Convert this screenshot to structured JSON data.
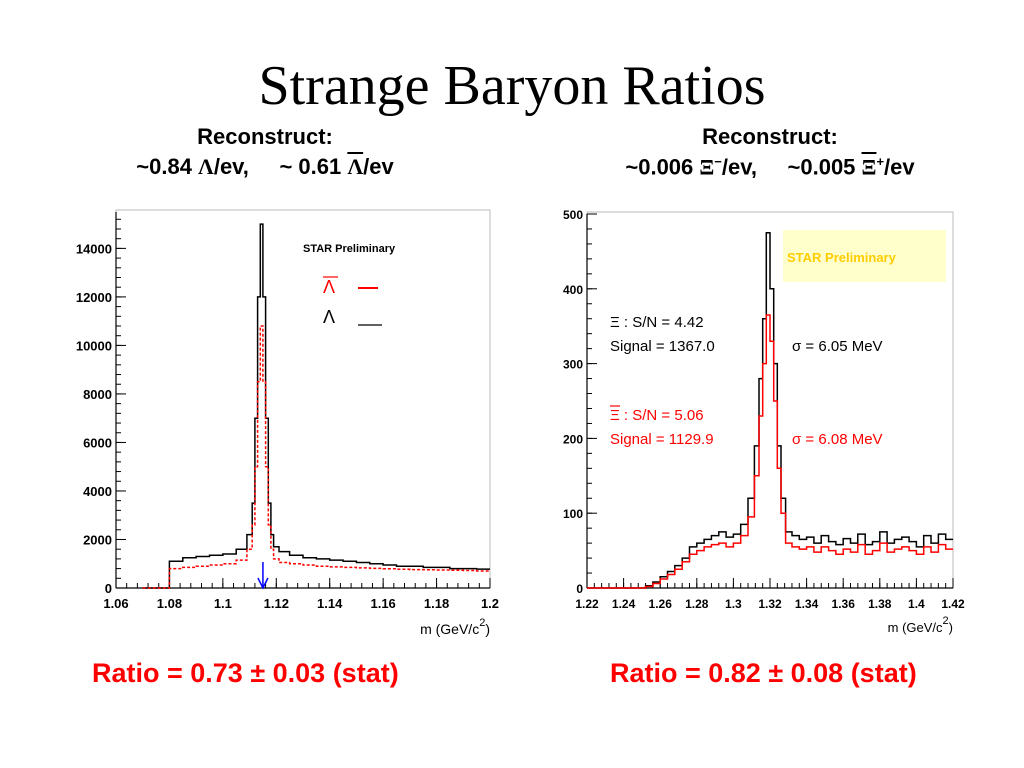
{
  "title": "Strange Baryon  Ratios",
  "left_panel": {
    "heading": "Reconstruct:",
    "yield_a_prefix": "~0.84 ",
    "yield_a_symbol": "Λ",
    "yield_a_suffix": "/ev,",
    "yield_b_prefix": "~ 0.61 ",
    "yield_b_symbol": "Λ",
    "yield_b_suffix": "/ev",
    "ratio": "Ratio = 0.73 ± 0.03 (stat)"
  },
  "right_panel": {
    "heading": "Reconstruct:",
    "yield_a_prefix": "~0.006 ",
    "yield_a_symbol": "Ξ",
    "yield_a_sup": "−",
    "yield_a_suffix": "/ev,",
    "yield_b_prefix": "~0.005 ",
    "yield_b_symbol": "Ξ",
    "yield_b_sup": "+",
    "yield_b_suffix": "/ev",
    "ratio": "Ratio = 0.82 ± 0.08 (stat)"
  },
  "colors": {
    "ratio_text": "#ff0000",
    "antiparticle_series": "#ff0000",
    "particle_series": "#000000",
    "preliminary_box": "#ffffcc",
    "preliminary_text": "#ffcc00",
    "arrow": "#0000ff"
  },
  "chart_data": [
    {
      "type": "line",
      "title": "",
      "xlabel": "m  (GeV/c",
      "xlabel_sup": "2",
      "xlabel_end": ")",
      "ylabel": "",
      "xlim": [
        1.06,
        1.2
      ],
      "ylim": [
        0,
        15500
      ],
      "x_ticks": [
        "1.06",
        "1.08",
        "1.1",
        "1.12",
        "1.14",
        "1.16",
        "1.18",
        "1.2"
      ],
      "y_ticks": [
        "0",
        "2000",
        "4000",
        "6000",
        "8000",
        "10000",
        "12000",
        "14000"
      ],
      "annotation": "STAR Preliminary",
      "legend": [
        {
          "symbol": "Λ",
          "overline": true,
          "color": "#ff0000"
        },
        {
          "symbol": "Λ",
          "overline": false,
          "color": "#000000"
        }
      ],
      "arrow_x": 1.115,
      "series": [
        {
          "color": "#000000",
          "style": "solid",
          "x": [
            1.0725,
            1.0775,
            1.0825,
            1.0875,
            1.0925,
            1.0975,
            1.1025,
            1.1075,
            1.1105,
            1.1115,
            1.1125,
            1.1135,
            1.1145,
            1.1155,
            1.1165,
            1.1175,
            1.1185,
            1.1195,
            1.1225,
            1.1275,
            1.1325,
            1.1375,
            1.1425,
            1.1475,
            1.1525,
            1.1575,
            1.1625,
            1.1675,
            1.1725,
            1.1775,
            1.1825,
            1.1875,
            1.1925,
            1.1975
          ],
          "y": [
            0,
            0,
            1100,
            1250,
            1300,
            1350,
            1400,
            1600,
            2200,
            3500,
            7000,
            12000,
            15000,
            12000,
            7000,
            3500,
            2200,
            1700,
            1500,
            1350,
            1250,
            1200,
            1150,
            1100,
            1050,
            1000,
            950,
            900,
            900,
            850,
            850,
            800,
            800,
            780
          ]
        },
        {
          "color": "#ff0000",
          "style": "dashed",
          "x": [
            1.0725,
            1.0775,
            1.0825,
            1.0875,
            1.0925,
            1.0975,
            1.1025,
            1.1075,
            1.1105,
            1.1115,
            1.1125,
            1.1135,
            1.1145,
            1.1155,
            1.1165,
            1.1175,
            1.1185,
            1.1195,
            1.1225,
            1.1275,
            1.1325,
            1.1375,
            1.1425,
            1.1475,
            1.1525,
            1.1575,
            1.1625,
            1.1675,
            1.1725,
            1.1775,
            1.1825,
            1.1875,
            1.1925,
            1.1975
          ],
          "y": [
            0,
            0,
            800,
            850,
            900,
            950,
            1000,
            1150,
            1600,
            2600,
            5000,
            8500,
            10800,
            8500,
            5000,
            2600,
            1600,
            1200,
            1050,
            1000,
            950,
            900,
            870,
            850,
            830,
            810,
            790,
            770,
            760,
            750,
            740,
            730,
            720,
            700
          ]
        }
      ]
    },
    {
      "type": "line",
      "title": "",
      "xlabel": "m (GeV/c",
      "xlabel_sup": "2",
      "xlabel_end": ")",
      "ylabel": "",
      "xlim": [
        1.22,
        1.42
      ],
      "ylim": [
        0,
        500
      ],
      "x_ticks": [
        "1.22",
        "1.24",
        "1.26",
        "1.28",
        "1.3",
        "1.32",
        "1.34",
        "1.36",
        "1.38",
        "1.4",
        "1.42"
      ],
      "y_ticks": [
        "0",
        "100",
        "200",
        "300",
        "400",
        "500"
      ],
      "annotation": "STAR Preliminary",
      "texts": [
        {
          "text": "Ξ : S/N = 4.42",
          "color": "#000000",
          "overline_symbol": false
        },
        {
          "text": "Signal = 1367.0",
          "color": "#000000"
        },
        {
          "text": "σ = 6.05 MeV",
          "color": "#000000"
        },
        {
          "text": "Ξ : S/N = 5.06",
          "color": "#ff0000",
          "overline_symbol": true
        },
        {
          "text": "Signal = 1129.9",
          "color": "#ff0000"
        },
        {
          "text": "σ = 6.08 MeV",
          "color": "#ff0000"
        }
      ],
      "series": [
        {
          "color": "#000000",
          "style": "solid",
          "x": [
            1.222,
            1.226,
            1.23,
            1.234,
            1.238,
            1.242,
            1.246,
            1.25,
            1.254,
            1.258,
            1.262,
            1.266,
            1.27,
            1.274,
            1.278,
            1.282,
            1.286,
            1.29,
            1.294,
            1.298,
            1.302,
            1.306,
            1.31,
            1.313,
            1.315,
            1.317,
            1.319,
            1.321,
            1.323,
            1.325,
            1.327,
            1.33,
            1.334,
            1.338,
            1.342,
            1.346,
            1.35,
            1.354,
            1.358,
            1.362,
            1.366,
            1.37,
            1.374,
            1.378,
            1.382,
            1.386,
            1.39,
            1.394,
            1.398,
            1.402,
            1.406,
            1.41,
            1.414,
            1.418
          ],
          "y": [
            0,
            0,
            0,
            0,
            0,
            0,
            0,
            0,
            3,
            8,
            15,
            22,
            30,
            40,
            55,
            60,
            65,
            70,
            75,
            68,
            72,
            85,
            120,
            190,
            280,
            360,
            475,
            400,
            300,
            190,
            120,
            75,
            70,
            65,
            68,
            60,
            70,
            62,
            58,
            66,
            60,
            72,
            58,
            62,
            75,
            60,
            65,
            68,
            62,
            55,
            70,
            60,
            72,
            65
          ]
        },
        {
          "color": "#ff0000",
          "style": "solid",
          "x": [
            1.222,
            1.226,
            1.23,
            1.234,
            1.238,
            1.242,
            1.246,
            1.25,
            1.254,
            1.258,
            1.262,
            1.266,
            1.27,
            1.274,
            1.278,
            1.282,
            1.286,
            1.29,
            1.294,
            1.298,
            1.302,
            1.306,
            1.31,
            1.313,
            1.315,
            1.317,
            1.319,
            1.321,
            1.323,
            1.325,
            1.327,
            1.33,
            1.334,
            1.338,
            1.342,
            1.346,
            1.35,
            1.354,
            1.358,
            1.362,
            1.366,
            1.37,
            1.374,
            1.378,
            1.382,
            1.386,
            1.39,
            1.394,
            1.398,
            1.402,
            1.406,
            1.41,
            1.414,
            1.418
          ],
          "y": [
            0,
            0,
            0,
            0,
            0,
            0,
            0,
            0,
            2,
            6,
            12,
            18,
            25,
            35,
            45,
            50,
            55,
            58,
            60,
            55,
            60,
            70,
            95,
            150,
            230,
            300,
            365,
            330,
            250,
            160,
            100,
            60,
            55,
            52,
            55,
            48,
            55,
            50,
            45,
            52,
            48,
            58,
            45,
            50,
            60,
            48,
            52,
            55,
            50,
            45,
            55,
            48,
            58,
            52
          ]
        }
      ]
    }
  ]
}
